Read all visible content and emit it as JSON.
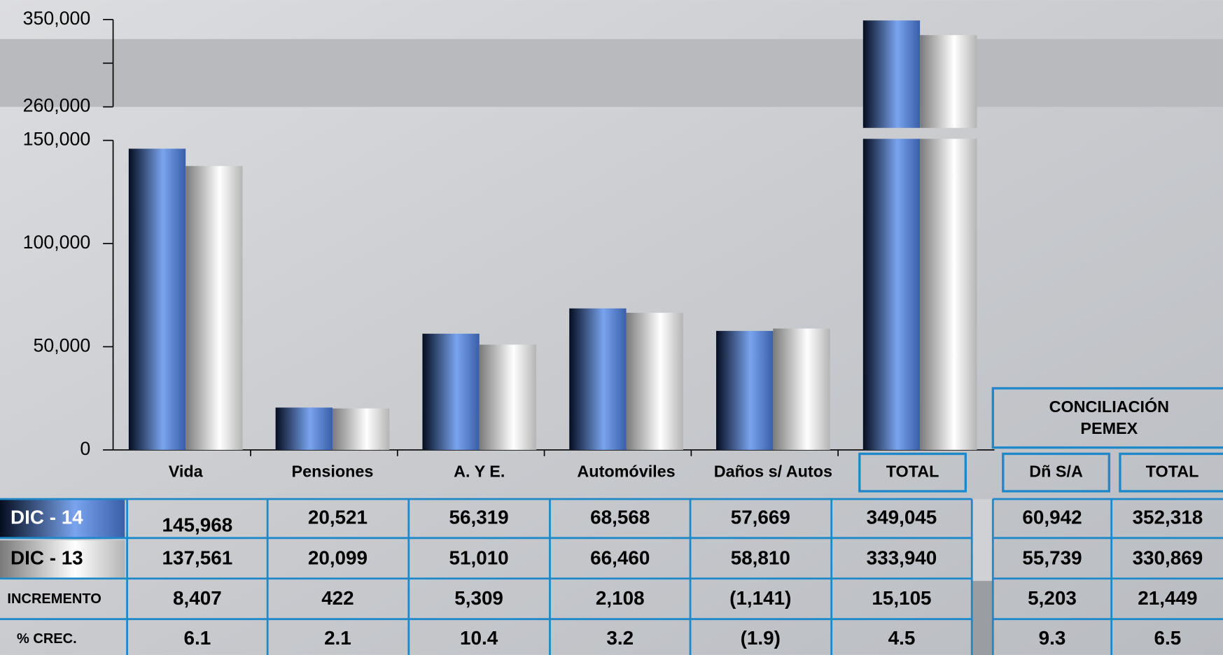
{
  "chart_data": {
    "type": "bar",
    "categories": [
      "Vida",
      "Pensiones",
      "A. Y E.",
      "Automóviles",
      "Daños s/ Autos",
      "TOTAL"
    ],
    "series": [
      {
        "name": "DIC - 14",
        "color": "#4a78c8",
        "values": [
          145968,
          20521,
          56319,
          68568,
          57669,
          349045
        ],
        "value_labels": [
          "145,968",
          "20,521",
          "56,319",
          "68,568",
          "57,669",
          "349,045"
        ]
      },
      {
        "name": "DIC - 13",
        "color": "#c8c8c8",
        "values": [
          137561,
          20099,
          51010,
          66460,
          58810,
          333940
        ],
        "value_labels": [
          "137,561",
          "20,099",
          "51,010",
          "66,460",
          "58,810",
          "333,940"
        ]
      }
    ],
    "ylim": [
      0,
      150000
    ],
    "yticks": [
      0,
      {
        "value": 50000,
        "label": "50,000"
      },
      {
        "value": 100000,
        "label": "100,000"
      },
      {
        "value": 150000,
        "label": "150,000"
      }
    ],
    "y2lim": [
      260000,
      350000
    ],
    "y2ticks": [
      {
        "value": 260000,
        "label": "260,000"
      },
      {
        "value": 305000,
        "label": null
      },
      {
        "value": 350000,
        "label": "350,000"
      }
    ]
  },
  "table": {
    "rows": [
      {
        "label": "INCREMENTO",
        "values": [
          "8,407",
          "422",
          "5,309",
          "2,108",
          "(1,141)",
          "15,105"
        ]
      },
      {
        "label": "% CREC.",
        "values": [
          "6.1",
          "2.1",
          "10.4",
          "3.2",
          "(1.9)",
          "4.5"
        ]
      }
    ]
  },
  "conciliation": {
    "title_lines": [
      "CONCILIACIÓN",
      "PEMEX"
    ],
    "columns": [
      "Dñ S/A",
      "TOTAL"
    ],
    "rows": [
      [
        "60,942",
        "352,318"
      ],
      [
        "55,739",
        "330,869"
      ],
      [
        "5,203",
        "21,449"
      ],
      [
        "9.3",
        "6.5"
      ]
    ]
  }
}
